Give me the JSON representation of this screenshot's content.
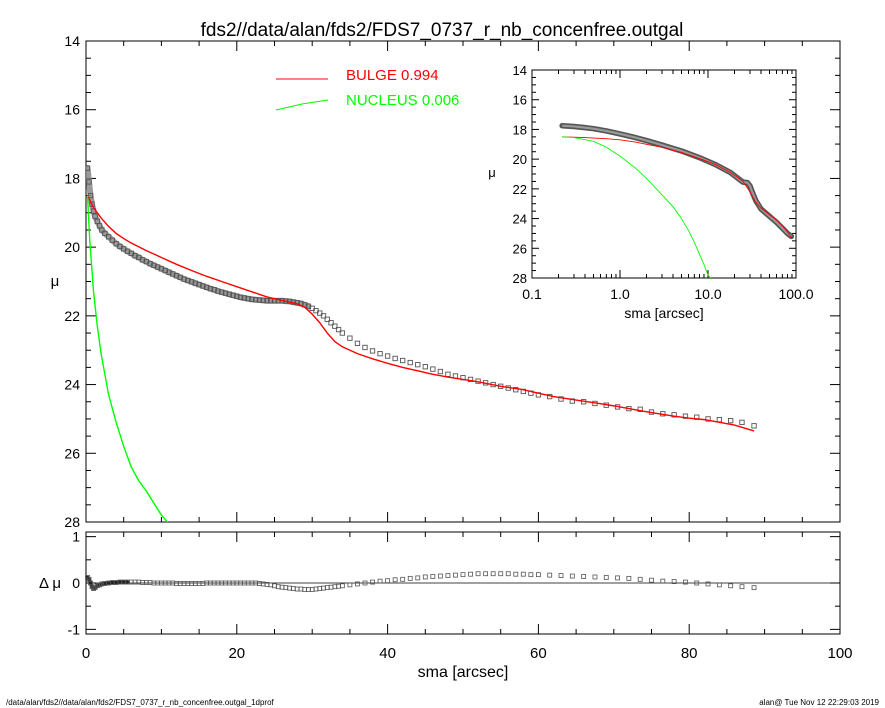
{
  "header": {
    "title": "fds2//data/alan/fds2/FDS7_0737_r_nb_concenfree.outgal"
  },
  "footer": {
    "left": "/data/alan/fds2//data/alan/fds2/FDS7_0737_r_nb_concenfree.outgal_1dprof",
    "right": "alan@  Tue Nov 12 22:29:03 2019"
  },
  "colors": {
    "bulge": "#ff0000",
    "nucleus": "#00ff00",
    "data": "#555555",
    "axes": "#000000"
  },
  "chart_data": [
    {
      "id": "main",
      "type": "line",
      "ylabel": "μ",
      "xlim": [
        0,
        100
      ],
      "ylim": [
        28,
        14
      ],
      "yticks": [
        14,
        16,
        18,
        20,
        22,
        24,
        26,
        28
      ],
      "legend": {
        "position": "top-center",
        "entries": [
          {
            "label": "BULGE  0.994",
            "color": "#ff0000"
          },
          {
            "label": "NUCLEUS  0.006",
            "color": "#00ff00"
          }
        ]
      },
      "series": [
        {
          "name": "BULGE  0.994",
          "color": "#ff0000",
          "x": [
            0.2,
            1,
            2,
            3,
            4,
            5,
            6,
            8,
            10,
            12,
            14,
            16,
            18,
            20,
            22,
            24,
            26,
            28,
            29,
            30,
            31,
            32,
            33,
            34,
            36,
            38,
            40,
            42,
            44,
            46,
            48,
            50,
            52,
            55,
            58,
            60,
            62,
            65,
            68,
            70,
            72,
            74,
            76,
            78,
            80,
            82,
            84,
            86,
            88.6
          ],
          "y": [
            18.5,
            18.85,
            19.15,
            19.4,
            19.6,
            19.75,
            19.88,
            20.1,
            20.3,
            20.5,
            20.68,
            20.85,
            21.0,
            21.15,
            21.3,
            21.45,
            21.55,
            21.65,
            21.75,
            21.95,
            22.2,
            22.5,
            22.75,
            22.9,
            23.1,
            23.25,
            23.38,
            23.5,
            23.6,
            23.7,
            23.78,
            23.85,
            23.92,
            24.05,
            24.15,
            24.25,
            24.35,
            24.45,
            24.55,
            24.62,
            24.7,
            24.78,
            24.85,
            24.92,
            24.98,
            25.02,
            25.1,
            25.18,
            25.35
          ]
        },
        {
          "name": "NUCLEUS  0.006",
          "color": "#00ff00",
          "x": [
            0.2,
            0.5,
            1,
            1.5,
            2,
            3,
            4,
            5,
            6,
            7,
            8,
            9,
            10,
            11.2
          ],
          "y": [
            18.5,
            19.8,
            21.3,
            22.3,
            23.1,
            24.3,
            25.1,
            25.8,
            26.4,
            26.8,
            27.1,
            27.45,
            27.8,
            28.1
          ]
        },
        {
          "name": "",
          "marker": "square",
          "color": "#555555",
          "x": [
            0.2,
            0.4,
            0.6,
            0.8,
            1,
            1.2,
            1.5,
            1.8,
            2.1,
            2.5,
            3,
            3.5,
            4,
            4.5,
            5,
            5.5,
            6,
            6.5,
            7,
            7.5,
            8,
            8.5,
            9,
            9.5,
            10,
            10.5,
            11,
            11.5,
            12,
            12.5,
            13,
            13.5,
            14,
            14.5,
            15,
            15.5,
            16,
            16.5,
            17,
            17.5,
            18,
            18.5,
            19,
            19.5,
            20,
            20.5,
            21,
            21.5,
            22,
            22.5,
            23,
            23.5,
            24,
            24.5,
            25,
            25.5,
            26,
            26.5,
            27,
            27.5,
            28,
            28.5,
            29,
            29.5,
            30,
            30.5,
            31,
            31.5,
            32,
            32.5,
            33,
            33.5,
            34,
            35,
            36,
            37,
            38,
            39,
            40,
            41,
            42,
            43,
            44,
            45,
            46,
            47,
            48,
            49,
            50,
            51,
            52,
            53,
            54,
            55,
            56,
            57,
            58,
            59,
            60,
            61.5,
            63,
            64.5,
            66,
            67.5,
            69,
            70.5,
            72,
            73.5,
            75,
            76.5,
            78,
            79.5,
            81,
            82.5,
            84,
            85.5,
            87,
            88.6
          ],
          "y": [
            17.7,
            18.1,
            18.5,
            18.75,
            18.95,
            19.1,
            19.25,
            19.38,
            19.5,
            19.6,
            19.7,
            19.8,
            19.9,
            19.98,
            20.05,
            20.12,
            20.18,
            20.25,
            20.3,
            20.37,
            20.42,
            20.48,
            20.53,
            20.58,
            20.63,
            20.68,
            20.73,
            20.78,
            20.83,
            20.88,
            20.93,
            20.97,
            21.01,
            21.05,
            21.09,
            21.13,
            21.17,
            21.21,
            21.24,
            21.28,
            21.31,
            21.34,
            21.37,
            21.4,
            21.43,
            21.46,
            21.48,
            21.5,
            21.52,
            21.53,
            21.54,
            21.55,
            21.56,
            21.56,
            21.56,
            21.56,
            21.56,
            21.57,
            21.58,
            21.6,
            21.62,
            21.64,
            21.68,
            21.72,
            21.78,
            21.85,
            21.92,
            22.0,
            22.1,
            22.2,
            22.3,
            22.4,
            22.5,
            22.65,
            22.8,
            22.92,
            23.02,
            23.1,
            23.17,
            23.24,
            23.3,
            23.36,
            23.42,
            23.48,
            23.55,
            23.62,
            23.7,
            23.75,
            23.8,
            23.85,
            23.9,
            23.95,
            24.0,
            24.05,
            24.1,
            24.15,
            24.2,
            24.25,
            24.3,
            24.35,
            24.42,
            24.48,
            24.5,
            24.55,
            24.6,
            24.65,
            24.7,
            24.72,
            24.8,
            24.85,
            24.88,
            24.92,
            24.95,
            25.0,
            25.02,
            25.05,
            25.1,
            25.2
          ]
        }
      ]
    },
    {
      "id": "residual",
      "type": "scatter",
      "ylabel": "Δ μ",
      "xlabel": "sma [arcsec]",
      "xlim": [
        0,
        100
      ],
      "ylim": [
        -1.1,
        1.1
      ],
      "xticks": [
        0,
        20,
        40,
        60,
        80,
        100
      ],
      "yticks": [
        -1,
        0,
        1
      ],
      "series": [
        {
          "name": "",
          "marker": "square",
          "color": "#555555",
          "x": [
            0.2,
            0.4,
            0.6,
            0.8,
            1,
            1.2,
            1.5,
            1.8,
            2.1,
            2.5,
            3,
            3.5,
            4,
            4.5,
            5,
            5.5,
            6,
            6.5,
            7,
            7.5,
            8,
            8.5,
            9,
            9.5,
            10,
            10.5,
            11,
            11.5,
            12,
            12.5,
            13,
            13.5,
            14,
            14.5,
            15,
            15.5,
            16,
            16.5,
            17,
            17.5,
            18,
            18.5,
            19,
            19.5,
            20,
            20.5,
            21,
            21.5,
            22,
            22.5,
            23,
            23.5,
            24,
            24.5,
            25,
            25.5,
            26,
            26.5,
            27,
            27.5,
            28,
            28.5,
            29,
            29.5,
            30,
            30.5,
            31,
            31.5,
            32,
            32.5,
            33,
            33.5,
            34,
            35,
            36,
            37,
            38,
            39,
            40,
            41,
            42,
            43,
            44,
            45,
            46,
            47,
            48,
            49,
            50,
            51,
            52,
            53,
            54,
            55,
            56,
            57,
            58,
            59,
            60,
            61.5,
            63,
            64.5,
            66,
            67.5,
            69,
            70.5,
            72,
            73.5,
            75,
            76.5,
            78,
            79.5,
            81,
            82.5,
            84,
            85.5,
            87,
            88.6
          ],
          "y": [
            0.12,
            0.08,
            0.0,
            -0.08,
            -0.12,
            -0.1,
            -0.06,
            -0.04,
            -0.02,
            -0.01,
            0.0,
            0.01,
            0.01,
            0.02,
            0.02,
            0.02,
            0.02,
            0.02,
            0.02,
            0.01,
            0.01,
            0.01,
            0.0,
            0.0,
            0.0,
            0.0,
            0.0,
            0.0,
            -0.01,
            -0.01,
            -0.01,
            -0.01,
            -0.01,
            -0.01,
            -0.01,
            -0.01,
            0.0,
            0.0,
            0.0,
            0.0,
            0.0,
            0.0,
            0.0,
            0.0,
            0.0,
            0.0,
            0.0,
            0.0,
            0.0,
            0.0,
            -0.01,
            -0.02,
            -0.03,
            -0.04,
            -0.06,
            -0.08,
            -0.09,
            -0.1,
            -0.11,
            -0.12,
            -0.13,
            -0.13,
            -0.14,
            -0.14,
            -0.14,
            -0.13,
            -0.12,
            -0.11,
            -0.1,
            -0.09,
            -0.08,
            -0.07,
            -0.06,
            -0.04,
            -0.02,
            0.0,
            0.02,
            0.04,
            0.05,
            0.07,
            0.08,
            0.1,
            0.11,
            0.13,
            0.14,
            0.15,
            0.16,
            0.17,
            0.18,
            0.19,
            0.2,
            0.2,
            0.2,
            0.2,
            0.2,
            0.19,
            0.19,
            0.18,
            0.18,
            0.17,
            0.16,
            0.15,
            0.14,
            0.13,
            0.12,
            0.11,
            0.1,
            0.08,
            0.06,
            0.04,
            0.03,
            0.02,
            0.0,
            -0.02,
            -0.04,
            -0.06,
            -0.08,
            -0.1
          ]
        }
      ]
    },
    {
      "id": "inset",
      "type": "line",
      "ylabel": "μ",
      "xlabel": "sma [arcsec]",
      "xscale": "log",
      "xlim": [
        0.1,
        100
      ],
      "ylim": [
        28,
        14
      ],
      "xticks": [
        0.1,
        1,
        10,
        100
      ],
      "xticklabels": [
        "0.1",
        "1.0",
        "10.0",
        "100.0"
      ],
      "yticks": [
        14,
        16,
        18,
        20,
        22,
        24,
        26,
        28
      ],
      "series": [
        {
          "name": "",
          "color": "#ff0000",
          "x": [
            0.22,
            0.3,
            0.4,
            0.5,
            0.7,
            1.0,
            1.5,
            2.0,
            3.0,
            5.0,
            8.0,
            12,
            18,
            25,
            30,
            35,
            40,
            50,
            60,
            70,
            80,
            88.6
          ],
          "y": [
            18.5,
            18.52,
            18.55,
            18.58,
            18.62,
            18.7,
            18.85,
            19.0,
            19.2,
            19.55,
            19.95,
            20.35,
            20.9,
            21.5,
            22.2,
            22.9,
            23.3,
            23.75,
            24.1,
            24.5,
            24.9,
            25.3
          ]
        },
        {
          "name": "",
          "color": "#00ff00",
          "x": [
            0.22,
            0.3,
            0.5,
            0.7,
            1.0,
            1.5,
            2.0,
            3.0,
            4.0,
            5.0,
            6.0,
            7.0,
            8.0,
            9.0,
            10.0,
            11.2
          ],
          "y": [
            18.5,
            18.55,
            18.8,
            19.2,
            19.8,
            20.6,
            21.3,
            22.4,
            23.2,
            24.0,
            24.8,
            25.6,
            26.4,
            27.1,
            27.8,
            28.1
          ]
        },
        {
          "name": "",
          "color": "#555555",
          "x": [
            0.22,
            0.3,
            0.4,
            0.5,
            0.7,
            1.0,
            1.5,
            2.0,
            3.0,
            5.0,
            8.0,
            12,
            18,
            22,
            25,
            28,
            30,
            32,
            35,
            40,
            50,
            60,
            70,
            80,
            88.6
          ],
          "y": [
            17.75,
            17.8,
            17.88,
            17.95,
            18.1,
            18.3,
            18.55,
            18.75,
            19.05,
            19.45,
            19.9,
            20.35,
            20.9,
            21.3,
            21.55,
            21.58,
            21.8,
            22.25,
            22.8,
            23.35,
            23.85,
            24.25,
            24.65,
            25.0,
            25.2
          ]
        }
      ]
    }
  ]
}
